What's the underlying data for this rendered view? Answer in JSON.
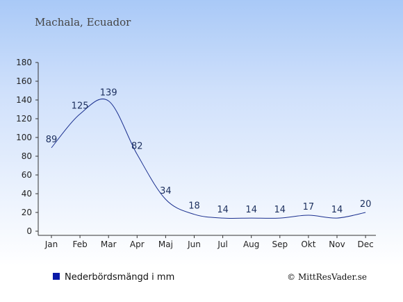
{
  "chart_data": {
    "type": "line",
    "title": "Machala, Ecuador",
    "categories": [
      "Jan",
      "Feb",
      "Mar",
      "Apr",
      "Maj",
      "Jun",
      "Jul",
      "Aug",
      "Sep",
      "Okt",
      "Nov",
      "Dec"
    ],
    "series": [
      {
        "name": "Nederbördsmängd i mm",
        "values": [
          89,
          125,
          139,
          82,
          34,
          18,
          14,
          14,
          14,
          17,
          14,
          20
        ]
      }
    ],
    "y_ticks": [
      0,
      20,
      40,
      60,
      80,
      100,
      120,
      140,
      160,
      180
    ],
    "ylim": [
      0,
      180
    ],
    "xlabel": "",
    "ylabel": "",
    "grid": false,
    "legend_position": "bottom-left",
    "colors": {
      "line": "#1a2f8f",
      "legend_swatch": "#0a1aa8",
      "axis": "#333333"
    }
  },
  "credit": "© MittResVader.se"
}
